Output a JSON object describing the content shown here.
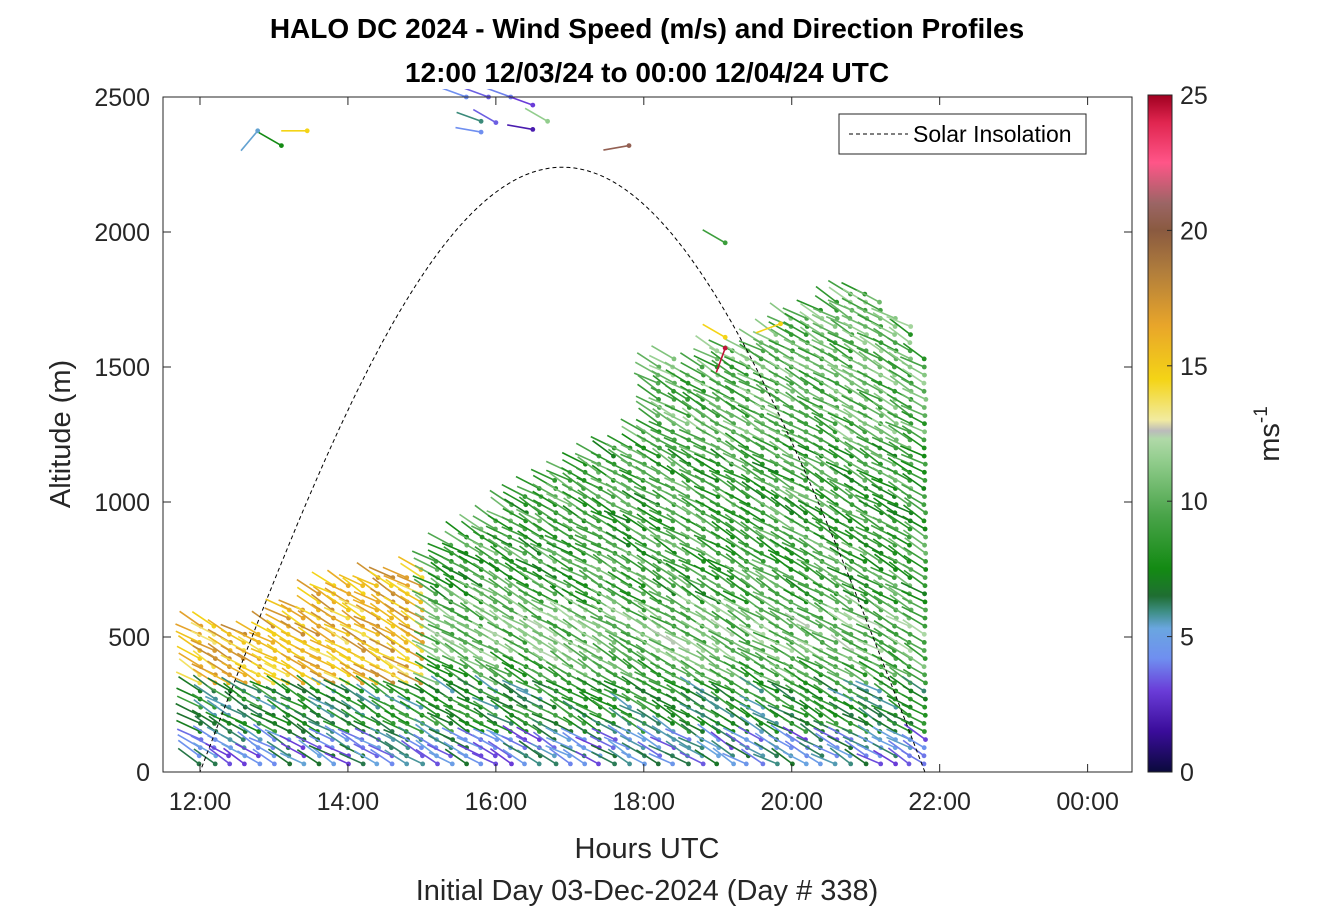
{
  "chart_data": {
    "type": "wind-barb-profile",
    "title_line1": "HALO DC 2024 - Wind Speed (m/s) and Direction Profiles",
    "title_line2": "12:00 12/03/24 to 00:00 12/04/24  UTC",
    "xlabel": "Hours UTC",
    "subtitle": "Initial Day 03-Dec-2024 (Day # 338)",
    "ylabel": "Altitude (m)",
    "x_range_hours": [
      11.5,
      24.6
    ],
    "y_range_m": [
      0,
      2500
    ],
    "x_ticks": [
      {
        "hour": 12,
        "label": "12:00"
      },
      {
        "hour": 14,
        "label": "14:00"
      },
      {
        "hour": 16,
        "label": "16:00"
      },
      {
        "hour": 18,
        "label": "18:00"
      },
      {
        "hour": 20,
        "label": "20:00"
      },
      {
        "hour": 22,
        "label": "22:00"
      },
      {
        "hour": 24,
        "label": "00:00"
      }
    ],
    "y_ticks": [
      {
        "value": 0,
        "label": "0"
      },
      {
        "value": 500,
        "label": "500"
      },
      {
        "value": 1000,
        "label": "1000"
      },
      {
        "value": 1500,
        "label": "1500"
      },
      {
        "value": 2000,
        "label": "2000"
      },
      {
        "value": 2500,
        "label": "2500"
      }
    ],
    "legend": {
      "label": "Solar Insolation",
      "placement": "top-right",
      "line_style": "dashed",
      "color": "#000000"
    },
    "solar_insolation": {
      "rise_hour": 12.0,
      "set_hour": 21.8,
      "peak_hour": 16.9,
      "peak_altitude_equiv_m": 2240
    },
    "colorbar": {
      "label": "ms",
      "label_exponent": "-1",
      "range": [
        0,
        25
      ],
      "ticks": [
        {
          "value": 0,
          "label": "0"
        },
        {
          "value": 5,
          "label": "5"
        },
        {
          "value": 10,
          "label": "10"
        },
        {
          "value": 15,
          "label": "15"
        },
        {
          "value": 20,
          "label": "20"
        },
        {
          "value": 25,
          "label": "25"
        }
      ],
      "color_stops": [
        {
          "v": 0.0,
          "c": "#0a0a3c"
        },
        {
          "v": 1.5,
          "c": "#3a0c9a"
        },
        {
          "v": 3.0,
          "c": "#6a3cd8"
        },
        {
          "v": 4.2,
          "c": "#6f8ff0"
        },
        {
          "v": 5.3,
          "c": "#6aa6e0"
        },
        {
          "v": 5.9,
          "c": "#3f8f88"
        },
        {
          "v": 6.5,
          "c": "#1f6e32"
        },
        {
          "v": 7.5,
          "c": "#138a13"
        },
        {
          "v": 9.5,
          "c": "#4aa44a"
        },
        {
          "v": 11.5,
          "c": "#92cd8d"
        },
        {
          "v": 12.3,
          "c": "#b0d9a8"
        },
        {
          "v": 12.6,
          "c": "#bbbbbb"
        },
        {
          "v": 13.0,
          "c": "#f2eba0"
        },
        {
          "v": 14.5,
          "c": "#f4d416"
        },
        {
          "v": 16.5,
          "c": "#e8a52a"
        },
        {
          "v": 18.5,
          "c": "#b07d3c"
        },
        {
          "v": 20.0,
          "c": "#8a5a40"
        },
        {
          "v": 21.0,
          "c": "#9b6565"
        },
        {
          "v": 22.5,
          "c": "#ff5588"
        },
        {
          "v": 24.0,
          "c": "#e0254f"
        },
        {
          "v": 25.0,
          "c": "#a00020"
        }
      ]
    },
    "profile_times_hours": [
      12.0,
      12.2,
      12.4,
      12.6,
      12.8,
      13.0,
      13.2,
      13.4,
      13.6,
      13.8,
      14.0,
      14.2,
      14.4,
      14.6,
      14.8,
      15.0,
      15.2,
      15.4,
      15.6,
      15.8,
      16.0,
      16.2,
      16.4,
      16.6,
      16.8,
      17.0,
      17.2,
      17.4,
      17.6,
      17.8,
      18.0,
      18.2,
      18.4,
      18.6,
      18.8,
      19.0,
      19.2,
      19.4,
      19.6,
      19.8,
      20.0,
      20.2,
      20.4,
      20.6,
      20.8,
      21.0,
      21.2,
      21.4,
      21.6,
      21.8
    ],
    "profile_top_altitudes_m": [
      550,
      540,
      520,
      510,
      520,
      560,
      600,
      620,
      660,
      690,
      700,
      710,
      720,
      730,
      740,
      760,
      800,
      840,
      880,
      900,
      940,
      1000,
      1030,
      1060,
      1090,
      1120,
      1150,
      1180,
      1200,
      1220,
      1260,
      1500,
      1540,
      1480,
      1500,
      1560,
      1580,
      1560,
      1600,
      1640,
      1680,
      1700,
      1720,
      1760,
      1780,
      1770,
      1740,
      1700,
      1650,
      1550
    ],
    "barb_spacing_m": 30,
    "wind_speed_by_altitude_ms": [
      {
        "max_alt_m": 130,
        "speed": 4.8
      },
      {
        "max_alt_m": 300,
        "speed": 7.5
      },
      {
        "max_alt_m": 400,
        "speed": 9.5
      },
      {
        "max_alt_m": 600,
        "speed": 10.5
      },
      {
        "max_alt_m": 1200,
        "speed": 9.0
      },
      {
        "max_alt_m": 1800,
        "speed": 10.0
      }
    ],
    "morning_boundary_layer": {
      "end_hour": 15.0,
      "from_alt_m": 300,
      "speed_range_ms": [
        13.5,
        18.0
      ]
    },
    "wind_direction_deg": 300,
    "upper_level_barbs": [
      {
        "hour": 12.78,
        "alt": 2375,
        "speed": 5.4,
        "dir": 220
      },
      {
        "hour": 13.45,
        "alt": 2375,
        "speed": 14.5,
        "dir": 270
      },
      {
        "hour": 13.1,
        "alt": 2320,
        "speed": 7.5,
        "dir": 300
      },
      {
        "hour": 15.6,
        "alt": 2500,
        "speed": 4.2,
        "dir": 290
      },
      {
        "hour": 15.9,
        "alt": 2500,
        "speed": 3.5,
        "dir": 290
      },
      {
        "hour": 16.2,
        "alt": 2500,
        "speed": 4.0,
        "dir": 290
      },
      {
        "hour": 16.5,
        "alt": 2470,
        "speed": 3.0,
        "dir": 290
      },
      {
        "hour": 15.8,
        "alt": 2410,
        "speed": 6.0,
        "dir": 290
      },
      {
        "hour": 16.0,
        "alt": 2405,
        "speed": 3.5,
        "dir": 300
      },
      {
        "hour": 15.8,
        "alt": 2370,
        "speed": 4.2,
        "dir": 280
      },
      {
        "hour": 16.5,
        "alt": 2380,
        "speed": 2.0,
        "dir": 280
      },
      {
        "hour": 16.7,
        "alt": 2410,
        "speed": 11.5,
        "dir": 300
      },
      {
        "hour": 17.8,
        "alt": 2320,
        "speed": 20.5,
        "dir": 260
      },
      {
        "hour": 19.1,
        "alt": 1960,
        "speed": 9.0,
        "dir": 300
      },
      {
        "hour": 19.1,
        "alt": 1610,
        "speed": 14.5,
        "dir": 300
      },
      {
        "hour": 19.1,
        "alt": 1570,
        "speed": 24.5,
        "dir": 200
      },
      {
        "hour": 19.85,
        "alt": 1660,
        "speed": 14.5,
        "dir": 250
      }
    ]
  }
}
